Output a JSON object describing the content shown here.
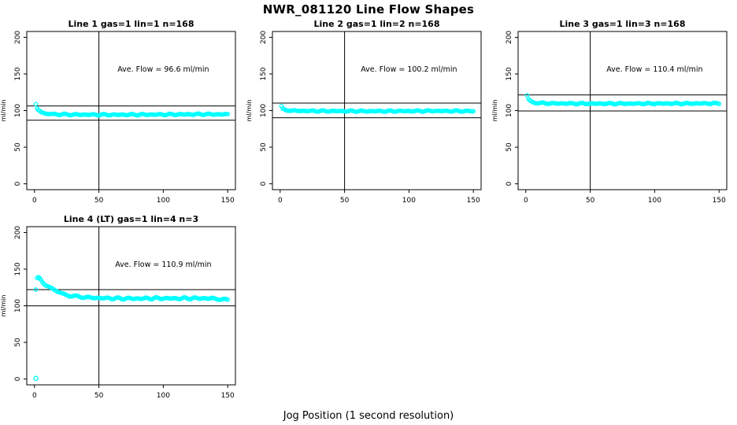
{
  "page_title": "NWR_081120  Line Flow Shapes",
  "xlabel": "Jog Position (1 second resolution)",
  "colors": {
    "points": "#00ffff",
    "axis": "#000000",
    "refline": "#000000",
    "background": "#ffffff"
  },
  "chart_data": [
    {
      "type": "scatter",
      "title": "Line 1 gas=1 lin=1 n=168",
      "annotation": "Ave. Flow =  96.6  ml/min",
      "ave_flow": 96.6,
      "ylabel": "ml/min",
      "xlim": [
        0,
        150
      ],
      "ylim": [
        0,
        200
      ],
      "xticks": [
        0,
        50,
        100,
        150
      ],
      "yticks": [
        0,
        50,
        100,
        150,
        200
      ],
      "vline_x": 50,
      "hlines": [
        106.3,
        86.9
      ],
      "marker": "open-circle",
      "n_points": 150,
      "jitter": 1.0,
      "anchors": [
        [
          1,
          108
        ],
        [
          2,
          103
        ],
        [
          3,
          100
        ],
        [
          5,
          97.5
        ],
        [
          8,
          96
        ],
        [
          15,
          95
        ],
        [
          30,
          94.5
        ],
        [
          60,
          94.3
        ],
        [
          100,
          94.6
        ],
        [
          130,
          95
        ],
        [
          150,
          94.8
        ]
      ],
      "outliers": []
    },
    {
      "type": "scatter",
      "title": "Line 2 gas=1 lin=2 n=168",
      "annotation": "Ave. Flow =  100.2  ml/min",
      "ave_flow": 100.2,
      "ylabel": "ml/min",
      "xlim": [
        0,
        150
      ],
      "ylim": [
        0,
        200
      ],
      "xticks": [
        0,
        50,
        100,
        150
      ],
      "yticks": [
        0,
        50,
        100,
        150,
        200
      ],
      "vline_x": 50,
      "hlines": [
        110.2,
        90.2
      ],
      "marker": "open-circle",
      "n_points": 150,
      "jitter": 0.9,
      "anchors": [
        [
          1,
          106
        ],
        [
          2,
          103
        ],
        [
          4,
          101
        ],
        [
          8,
          100
        ],
        [
          15,
          99.6
        ],
        [
          40,
          99.3
        ],
        [
          80,
          99.2
        ],
        [
          120,
          99.5
        ],
        [
          150,
          99.2
        ]
      ],
      "outliers": []
    },
    {
      "type": "scatter",
      "title": "Line 3 gas=1 lin=3 n=168",
      "annotation": "Ave. Flow =  110.4  ml/min",
      "ave_flow": 110.4,
      "ylabel": "ml/min",
      "xlim": [
        0,
        150
      ],
      "ylim": [
        0,
        200
      ],
      "xticks": [
        0,
        50,
        100,
        150
      ],
      "yticks": [
        0,
        50,
        100,
        150,
        200
      ],
      "vline_x": 50,
      "hlines": [
        121.4,
        99.4
      ],
      "marker": "open-circle",
      "n_points": 150,
      "jitter": 0.9,
      "anchors": [
        [
          1,
          120
        ],
        [
          2,
          116
        ],
        [
          3,
          113.5
        ],
        [
          5,
          111.5
        ],
        [
          10,
          110.3
        ],
        [
          20,
          109.8
        ],
        [
          50,
          109.5
        ],
        [
          100,
          109.6
        ],
        [
          150,
          109.8
        ]
      ],
      "outliers": []
    },
    {
      "type": "scatter",
      "title": "Line 4 (LT) gas=1 lin=4 n=3",
      "annotation": "Ave. Flow =  110.9  ml/min",
      "ave_flow": 110.9,
      "ylabel": "ml/min",
      "xlim": [
        0,
        150
      ],
      "ylim": [
        0,
        200
      ],
      "xticks": [
        0,
        50,
        100,
        150
      ],
      "yticks": [
        0,
        50,
        100,
        150,
        200
      ],
      "vline_x": 50,
      "hlines": [
        122.0,
        99.8
      ],
      "marker": "open-circle",
      "n_points": 150,
      "jitter": 1.4,
      "anchors": [
        [
          1,
          122
        ],
        [
          2,
          137
        ],
        [
          3,
          138
        ],
        [
          4,
          136.5
        ],
        [
          6,
          133
        ],
        [
          8,
          130
        ],
        [
          11,
          126
        ],
        [
          14,
          122.5
        ],
        [
          18,
          119
        ],
        [
          22,
          116.5
        ],
        [
          27,
          114
        ],
        [
          33,
          112.5
        ],
        [
          40,
          111.5
        ],
        [
          50,
          110.5
        ],
        [
          65,
          110
        ],
        [
          80,
          109.8
        ],
        [
          95,
          110.2
        ],
        [
          110,
          110
        ],
        [
          125,
          110.3
        ],
        [
          138,
          110
        ],
        [
          150,
          108
        ]
      ],
      "outliers": [
        [
          1,
          0.8
        ]
      ]
    }
  ]
}
